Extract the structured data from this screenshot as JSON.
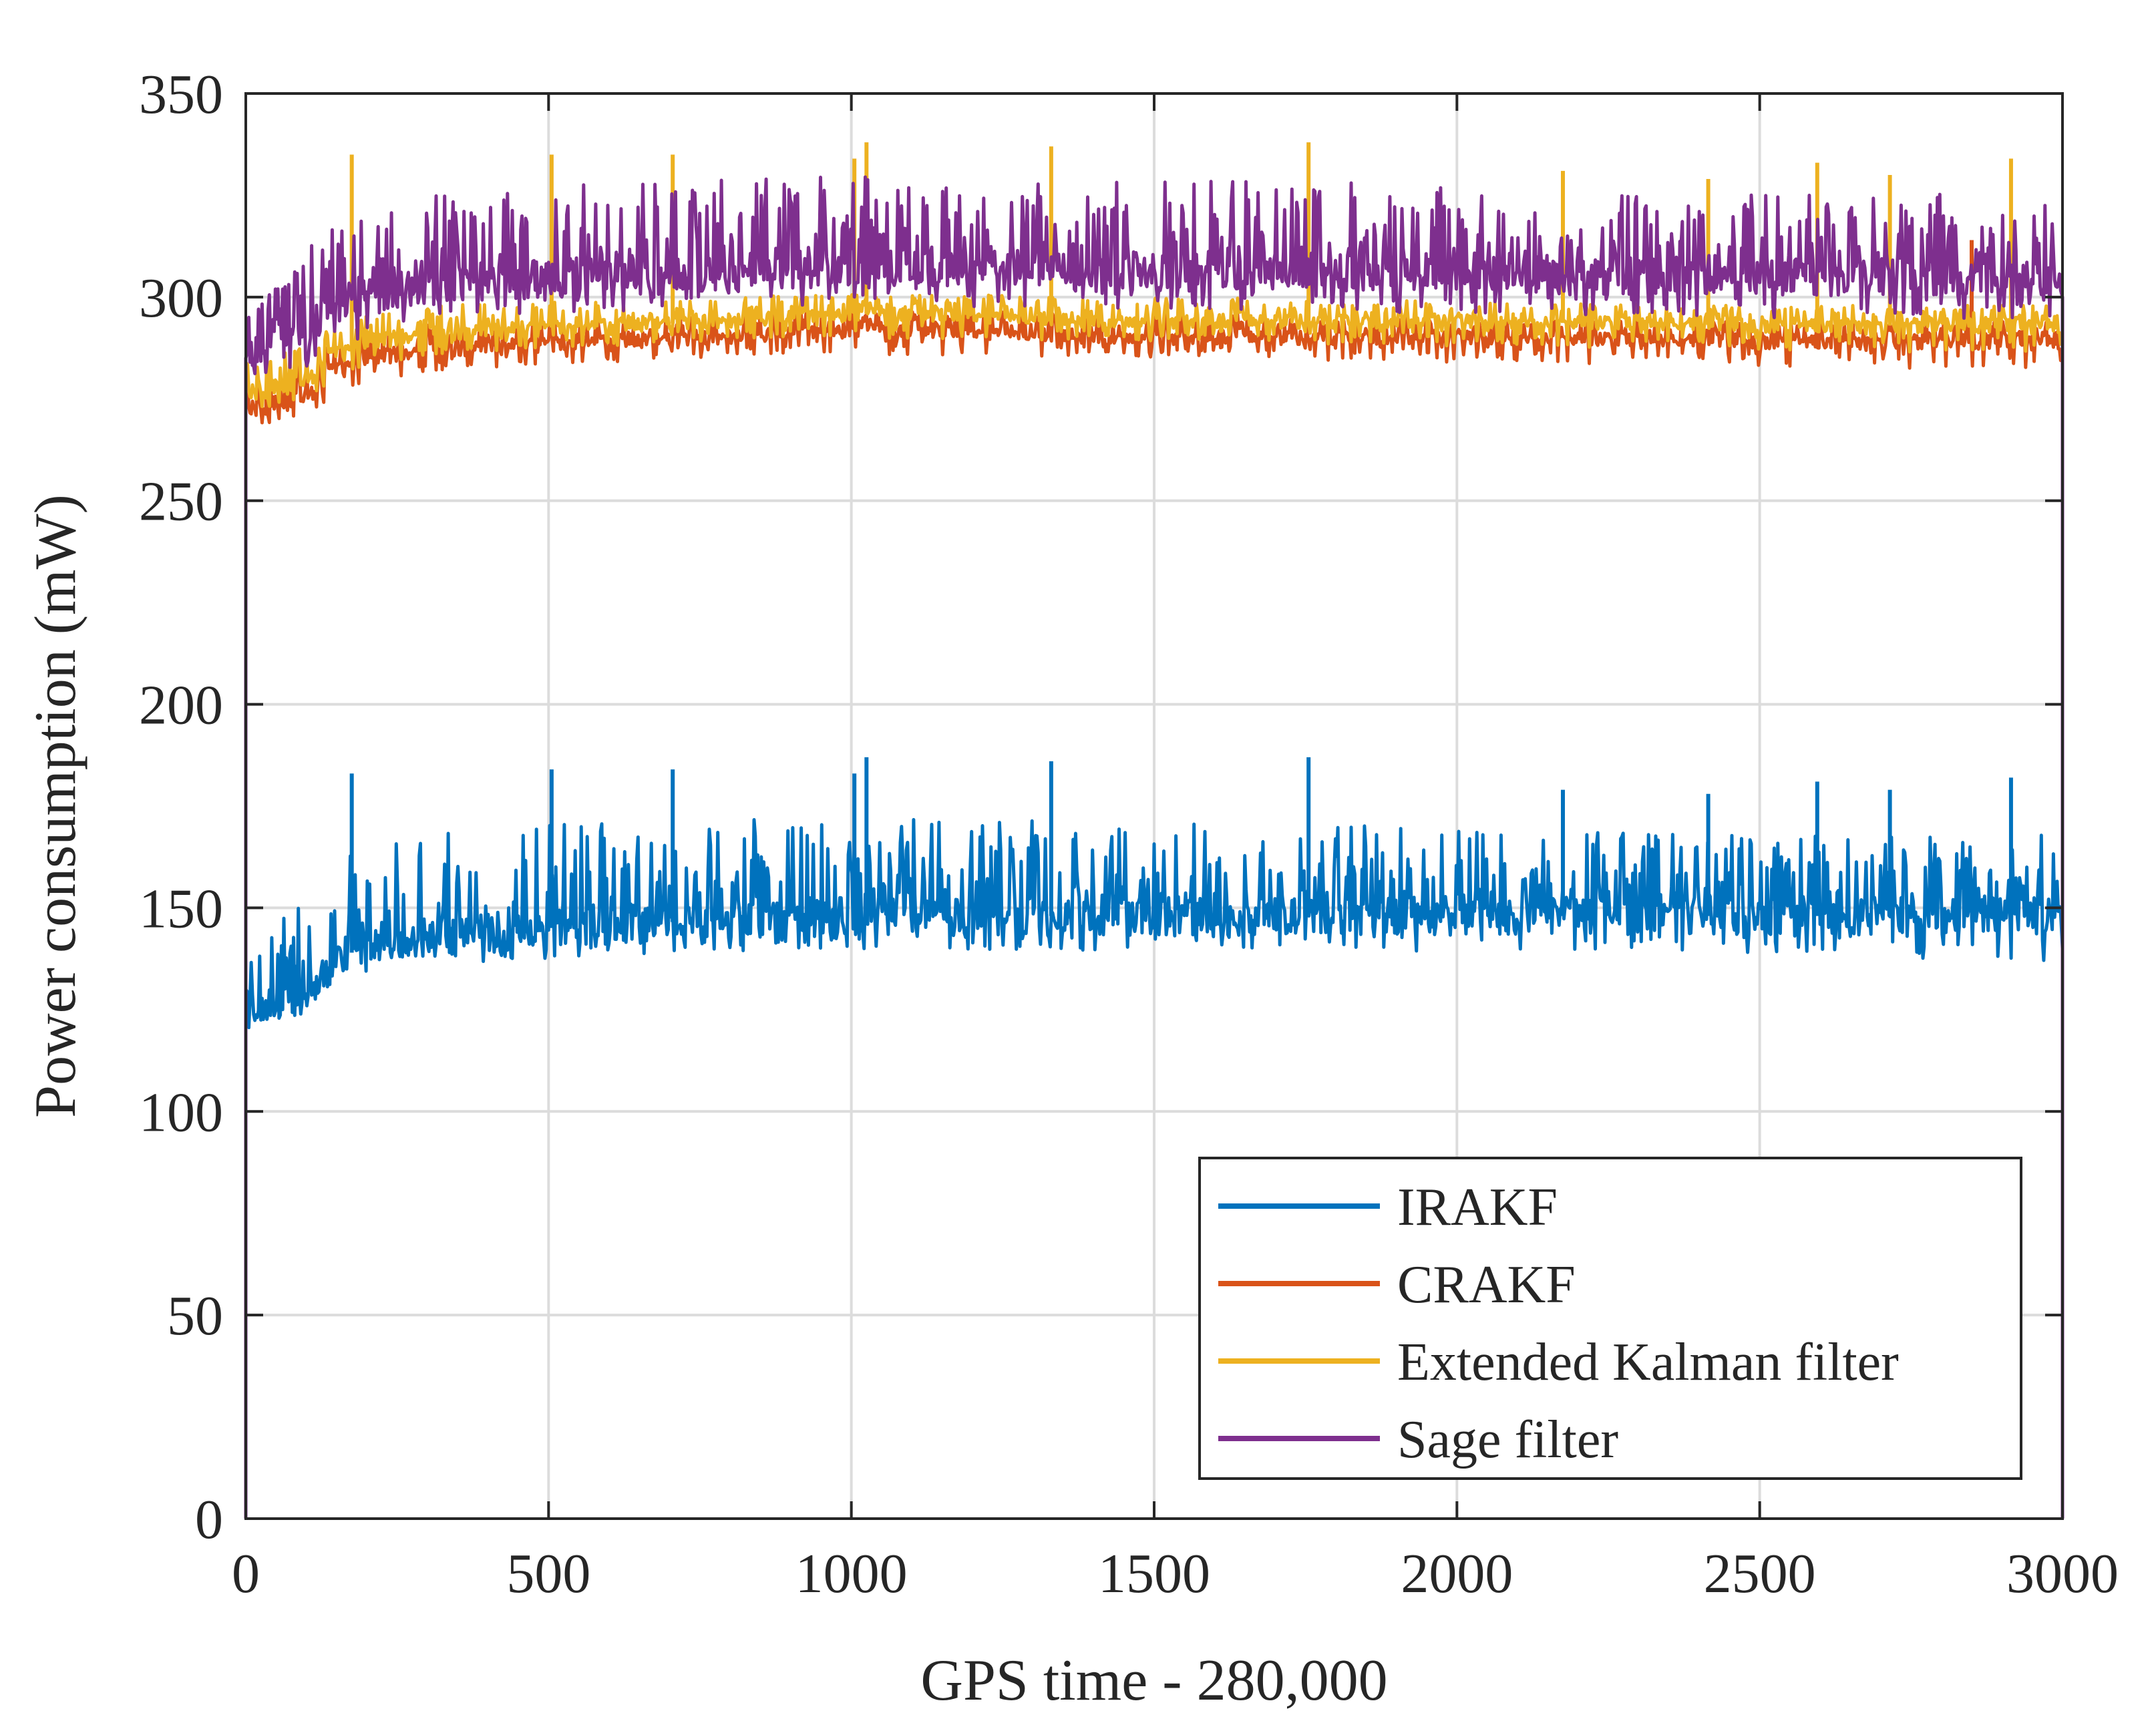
{
  "chart_data": {
    "type": "line",
    "title": "",
    "xlabel": "GPS time - 280,000",
    "ylabel": "Power consumption (mW)",
    "xlim": [
      0,
      3000
    ],
    "ylim": [
      0,
      350
    ],
    "grid": true,
    "xticks": [
      0,
      500,
      1000,
      1500,
      2000,
      2500,
      3000
    ],
    "xtick_labels": [
      "0",
      "500",
      "1000",
      "1500",
      "2000",
      "2500",
      "3000"
    ],
    "yticks": [
      0,
      50,
      100,
      150,
      200,
      250,
      300,
      350
    ],
    "ytick_labels": [
      "0",
      "50",
      "100",
      "150",
      "200",
      "250",
      "300",
      "350"
    ],
    "legend_position": "bottom-right",
    "series": [
      {
        "name": "IRAKF",
        "color": "#0072BD",
        "start_value": 130,
        "end_value": 140,
        "baseline": [
          [
            0,
            125
          ],
          [
            50,
            126
          ],
          [
            100,
            128
          ],
          [
            150,
            138
          ],
          [
            250,
            142
          ],
          [
            400,
            144
          ],
          [
            600,
            146
          ],
          [
            800,
            147
          ],
          [
            1000,
            148
          ],
          [
            1500,
            148
          ],
          [
            2000,
            148
          ],
          [
            2500,
            148
          ],
          [
            3000,
            148
          ]
        ],
        "envelope_low": [
          [
            0,
            120
          ],
          [
            100,
            125
          ],
          [
            150,
            132
          ],
          [
            300,
            136
          ],
          [
            600,
            138
          ],
          [
            1000,
            140
          ],
          [
            2000,
            139
          ],
          [
            2500,
            138
          ],
          [
            3000,
            137
          ]
        ],
        "envelope_high": [
          [
            0,
            140
          ],
          [
            100,
            152
          ],
          [
            150,
            162
          ],
          [
            300,
            168
          ],
          [
            600,
            172
          ],
          [
            1000,
            172
          ],
          [
            2000,
            170
          ],
          [
            2500,
            168
          ],
          [
            3000,
            168
          ]
        ],
        "spikes": [
          [
            175,
            183
          ],
          [
            505,
            184
          ],
          [
            705,
            184
          ],
          [
            1005,
            183
          ],
          [
            1025,
            187
          ],
          [
            1330,
            186
          ],
          [
            1755,
            187
          ],
          [
            2175,
            179
          ],
          [
            2415,
            178
          ],
          [
            2595,
            181
          ],
          [
            2715,
            179
          ],
          [
            2915,
            182
          ]
        ]
      },
      {
        "name": "CRAKF",
        "color": "#D95319",
        "start_value": 280,
        "end_value": 285,
        "baseline": [
          [
            0,
            272
          ],
          [
            50,
            274
          ],
          [
            100,
            276
          ],
          [
            150,
            283
          ],
          [
            250,
            286
          ],
          [
            400,
            288
          ],
          [
            600,
            289
          ],
          [
            800,
            290
          ],
          [
            1000,
            292
          ],
          [
            1500,
            290
          ],
          [
            2000,
            290
          ],
          [
            2500,
            289
          ],
          [
            3000,
            289
          ]
        ],
        "envelope_low": [
          [
            0,
            268
          ],
          [
            100,
            271
          ],
          [
            150,
            276
          ],
          [
            300,
            282
          ],
          [
            600,
            284
          ],
          [
            1000,
            286
          ],
          [
            2000,
            284
          ],
          [
            2500,
            283
          ],
          [
            3000,
            282
          ]
        ],
        "envelope_high": [
          [
            0,
            280
          ],
          [
            100,
            284
          ],
          [
            150,
            290
          ],
          [
            300,
            294
          ],
          [
            600,
            295
          ],
          [
            1000,
            297
          ],
          [
            2000,
            295
          ],
          [
            2500,
            294
          ],
          [
            3000,
            294
          ]
        ],
        "spikes": [
          [
            2850,
            314
          ]
        ]
      },
      {
        "name": "Extended Kalman filter",
        "color": "#EDB120",
        "start_value": 284,
        "end_value": 290,
        "baseline": [
          [
            0,
            276
          ],
          [
            50,
            278
          ],
          [
            100,
            280
          ],
          [
            150,
            287
          ],
          [
            250,
            290
          ],
          [
            400,
            292
          ],
          [
            600,
            293
          ],
          [
            800,
            294
          ],
          [
            1000,
            296
          ],
          [
            1500,
            294
          ],
          [
            2000,
            294
          ],
          [
            2500,
            293
          ],
          [
            3000,
            293
          ]
        ],
        "envelope_low": [
          [
            0,
            272
          ],
          [
            100,
            275
          ],
          [
            150,
            280
          ],
          [
            300,
            286
          ],
          [
            600,
            288
          ],
          [
            1000,
            290
          ],
          [
            2000,
            288
          ],
          [
            2500,
            287
          ],
          [
            3000,
            286
          ]
        ],
        "envelope_high": [
          [
            0,
            284
          ],
          [
            100,
            288
          ],
          [
            150,
            294
          ],
          [
            300,
            298
          ],
          [
            600,
            299
          ],
          [
            1000,
            301
          ],
          [
            2000,
            299
          ],
          [
            2500,
            298
          ],
          [
            3000,
            298
          ]
        ],
        "spikes": [
          [
            175,
            335
          ],
          [
            505,
            335
          ],
          [
            705,
            335
          ],
          [
            1005,
            334
          ],
          [
            1025,
            338
          ],
          [
            1330,
            337
          ],
          [
            1755,
            338
          ],
          [
            2175,
            331
          ],
          [
            2415,
            329
          ],
          [
            2595,
            333
          ],
          [
            2715,
            330
          ],
          [
            2915,
            334
          ]
        ]
      },
      {
        "name": "Sage filter",
        "color": "#7E2F8E",
        "start_value": 285,
        "end_value": 300,
        "baseline": [
          [
            0,
            285
          ],
          [
            50,
            290
          ],
          [
            100,
            293
          ],
          [
            150,
            298
          ],
          [
            250,
            302
          ],
          [
            400,
            304
          ],
          [
            600,
            305
          ],
          [
            800,
            306
          ],
          [
            1000,
            307
          ],
          [
            1500,
            306
          ],
          [
            2000,
            306
          ],
          [
            2500,
            305
          ],
          [
            3000,
            305
          ]
        ],
        "envelope_low": [
          [
            0,
            278
          ],
          [
            100,
            282
          ],
          [
            150,
            288
          ],
          [
            300,
            294
          ],
          [
            600,
            296
          ],
          [
            1000,
            298
          ],
          [
            2000,
            296
          ],
          [
            2500,
            295
          ],
          [
            3000,
            294
          ]
        ],
        "envelope_high": [
          [
            0,
            300
          ],
          [
            100,
            312
          ],
          [
            150,
            320
          ],
          [
            300,
            326
          ],
          [
            600,
            328
          ],
          [
            1000,
            330
          ],
          [
            2000,
            328
          ],
          [
            2500,
            326
          ],
          [
            3000,
            325
          ]
        ],
        "spikes": []
      }
    ]
  }
}
